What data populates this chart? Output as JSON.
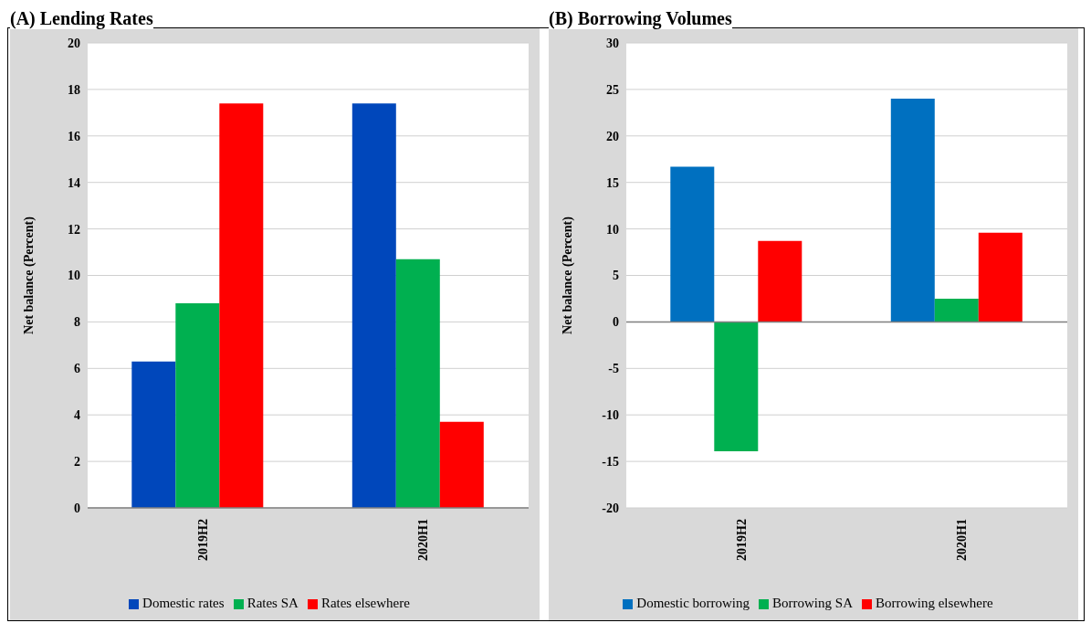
{
  "chart_data": [
    {
      "type": "bar",
      "title": "(A) Lending Rates",
      "ylabel": "Net balance (Percent)",
      "categories": [
        "2019H2",
        "2020H1"
      ],
      "series": [
        {
          "name": "Domestic rates",
          "color": "#0047bb",
          "values": [
            6.3,
            17.4
          ]
        },
        {
          "name": "Rates SA",
          "color": "#00b050",
          "values": [
            8.8,
            10.7
          ]
        },
        {
          "name": "Rates elsewhere",
          "color": "#ff0000",
          "values": [
            17.4,
            3.7
          ]
        }
      ],
      "ylim": [
        0,
        20
      ],
      "yticks": [
        0,
        2,
        4,
        6,
        8,
        10,
        12,
        14,
        16,
        18,
        20
      ],
      "grid": "y",
      "legend": "bottom"
    },
    {
      "type": "bar",
      "title": "(B) Borrowing Volumes",
      "ylabel": "Net balance (Percent)",
      "categories": [
        "2019H2",
        "2020H1"
      ],
      "series": [
        {
          "name": "Domestic borrowing",
          "color": "#0070c0",
          "values": [
            16.7,
            24.0
          ]
        },
        {
          "name": "Borrowing SA",
          "color": "#00b050",
          "values": [
            -13.9,
            2.5
          ]
        },
        {
          "name": "Borrowing elsewhere",
          "color": "#ff0000",
          "values": [
            8.7,
            9.6
          ]
        }
      ],
      "ylim": [
        -20,
        30
      ],
      "yticks": [
        -20,
        -15,
        -10,
        -5,
        0,
        5,
        10,
        15,
        20,
        25,
        30
      ],
      "grid": "y",
      "legend": "bottom"
    }
  ]
}
